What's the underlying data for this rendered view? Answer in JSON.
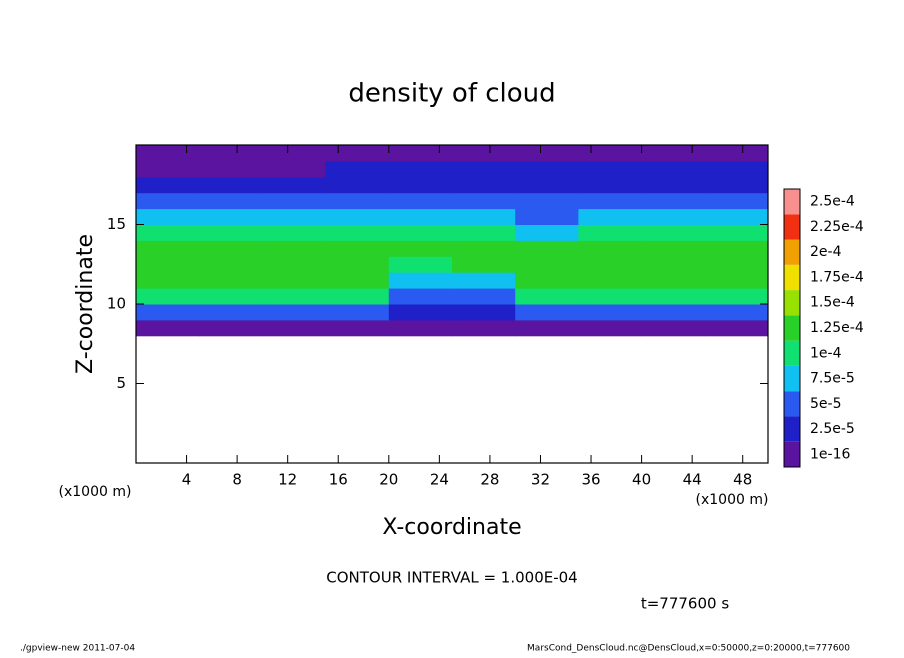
{
  "chart_data": {
    "type": "heatmap",
    "title": "density of cloud",
    "x_label": "X-coordinate",
    "y_label": "Z-coordinate",
    "x_unit_label": "(x1000 m)",
    "y_unit_label": "(x1000 m)",
    "xlim": [
      0,
      50
    ],
    "ylim": [
      0,
      20
    ],
    "xticks": [
      4,
      8,
      12,
      16,
      20,
      24,
      28,
      32,
      36,
      40,
      44,
      48
    ],
    "yticks": [
      5,
      10,
      15
    ],
    "xbins": [
      0,
      5,
      10,
      15,
      20,
      25,
      30,
      35,
      40,
      45,
      50
    ],
    "ybins": [
      8,
      9,
      10,
      11,
      12,
      13,
      14,
      15,
      16,
      17,
      18,
      19,
      20
    ],
    "values": [
      [
        2e-05,
        2e-05,
        2e-05,
        2e-05,
        2e-05,
        2e-05,
        2e-05,
        2e-05,
        2e-05,
        2e-05
      ],
      [
        5.5e-05,
        5.5e-05,
        5.5e-05,
        5.5e-05,
        4e-05,
        4e-05,
        5.5e-05,
        5.5e-05,
        5.5e-05,
        5.5e-05
      ],
      [
        0.000105,
        0.000105,
        0.000105,
        0.000105,
        6e-05,
        7e-05,
        0.000105,
        0.000105,
        0.000105,
        0.000105
      ],
      [
        0.00013,
        0.00013,
        0.00013,
        0.00013,
        8e-05,
        9e-05,
        0.00013,
        0.00013,
        0.00013,
        0.00013
      ],
      [
        0.000135,
        0.000135,
        0.000135,
        0.000135,
        0.00012,
        0.000135,
        0.000135,
        0.000135,
        0.000135,
        0.000135
      ],
      [
        0.00013,
        0.00013,
        0.00013,
        0.00013,
        0.00013,
        0.00013,
        0.00013,
        0.00013,
        0.00013,
        0.00013
      ],
      [
        0.00011,
        0.00011,
        0.00011,
        0.00011,
        0.00011,
        0.000105,
        8e-05,
        0.00011,
        0.00011,
        0.00011
      ],
      [
        8e-05,
        8e-05,
        8e-05,
        8e-05,
        8.5e-05,
        8.5e-05,
        6e-05,
        8e-05,
        8e-05,
        8e-05
      ],
      [
        5.5e-05,
        5.5e-05,
        5.5e-05,
        5.5e-05,
        5.5e-05,
        7e-05,
        5.5e-05,
        5.5e-05,
        5.5e-05,
        5.5e-05
      ],
      [
        4e-05,
        4e-05,
        4e-05,
        4e-05,
        4e-05,
        4e-05,
        4e-05,
        4e-05,
        4e-05,
        4e-05
      ],
      [
        2e-05,
        2e-05,
        2e-05,
        3e-05,
        3e-05,
        3e-05,
        3e-05,
        3e-05,
        3e-05,
        3e-05
      ],
      [
        2e-05,
        2e-05,
        2e-05,
        2e-05,
        2e-05,
        2e-05,
        2e-05,
        2e-05,
        2e-05,
        2e-05
      ]
    ],
    "levels": [
      {
        "value": 1e-16,
        "label": "1e-16"
      },
      {
        "value": 2.5e-05,
        "label": "2.5e-5"
      },
      {
        "value": 5e-05,
        "label": "5e-5"
      },
      {
        "value": 7.5e-05,
        "label": "7.5e-5"
      },
      {
        "value": 0.0001,
        "label": "1e-4"
      },
      {
        "value": 0.000125,
        "label": "1.25e-4"
      },
      {
        "value": 0.00015,
        "label": "1.5e-4"
      },
      {
        "value": 0.000175,
        "label": "1.75e-4"
      },
      {
        "value": 0.0002,
        "label": "2e-4"
      },
      {
        "value": 0.000225,
        "label": "2.25e-4"
      },
      {
        "value": 0.00025,
        "label": "2.5e-4"
      }
    ],
    "colors": [
      "#5a14a0",
      "#2020c8",
      "#2a5af0",
      "#10c0f0",
      "#10e070",
      "#28d028",
      "#98e000",
      "#f0e000",
      "#f0a000",
      "#f03010",
      "#f89090"
    ],
    "contour_note": "CONTOUR INTERVAL = 1.000E-04",
    "time_note": "t=777600 s",
    "footer_left": "./gpview-new  2011-07-04",
    "footer_right": "MarsCond_DensCloud.nc@DensCloud,x=0:50000,z=0:20000,t=777600"
  }
}
